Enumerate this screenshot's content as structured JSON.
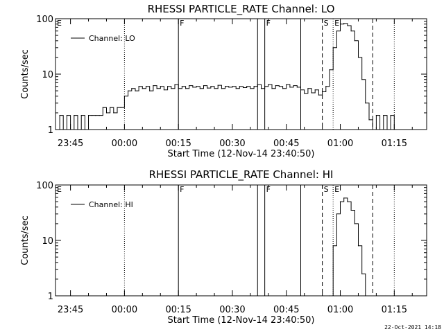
{
  "footer": {
    "date_stamp": "22-Oct-2021 14:18"
  },
  "colors": {
    "background": "#ffffff",
    "foreground": "#000000"
  },
  "chart_data": [
    {
      "type": "line",
      "title": "RHESSI PARTICLE_RATE Channel: LO",
      "xlabel": "Start Time (12-Nov-14 23:40:50)",
      "ylabel": "Counts/sec",
      "y_scale": "log",
      "ylim": [
        1,
        100
      ],
      "y_ticks": [
        {
          "value": 1,
          "label": "1"
        },
        {
          "value": 10,
          "label": "10"
        },
        {
          "value": 100,
          "label": "100"
        }
      ],
      "xlim": [
        "23:40:50",
        "01:24:00"
      ],
      "x_ticks": [
        {
          "value": "23:45",
          "label": "23:45"
        },
        {
          "value": "00:00",
          "label": "00:00"
        },
        {
          "value": "00:15",
          "label": "00:15"
        },
        {
          "value": "00:30",
          "label": "00:30"
        },
        {
          "value": "00:45",
          "label": "00:45"
        },
        {
          "value": "01:00",
          "label": "01:00"
        },
        {
          "value": "01:15",
          "label": "01:15"
        }
      ],
      "legend": {
        "placement": "top-left",
        "entry": "Channel: LO"
      },
      "markers": [
        {
          "time": "00:00",
          "style": "dotted",
          "label": ""
        },
        {
          "time": "00:15",
          "style": "solid",
          "label": "F"
        },
        {
          "time": "00:37",
          "style": "solid",
          "label": ""
        },
        {
          "time": "00:39",
          "style": "solid",
          "label": "F"
        },
        {
          "time": "00:49",
          "style": "solid",
          "label": ""
        },
        {
          "time": "00:55",
          "style": "dashed",
          "label": "S"
        },
        {
          "time": "00:58",
          "style": "dotted",
          "label": "E"
        },
        {
          "time": "01:09",
          "style": "dashed",
          "label": ""
        },
        {
          "time": "01:15",
          "style": "dotted",
          "label": ""
        }
      ],
      "corner_label": "E",
      "series": [
        {
          "name": "Channel: LO",
          "points": [
            [
              "23:41",
              1.0
            ],
            [
              "23:42",
              1.8
            ],
            [
              "23:43",
              1.0
            ],
            [
              "23:44",
              1.8
            ],
            [
              "23:45",
              1.0
            ],
            [
              "23:46",
              1.8
            ],
            [
              "23:47",
              1.0
            ],
            [
              "23:48",
              1.8
            ],
            [
              "23:49",
              1.0
            ],
            [
              "23:50",
              1.8
            ],
            [
              "23:51",
              1.8
            ],
            [
              "23:52",
              1.8
            ],
            [
              "23:53",
              1.8
            ],
            [
              "23:54",
              2.5
            ],
            [
              "23:55",
              2.0
            ],
            [
              "23:56",
              2.5
            ],
            [
              "23:57",
              2.0
            ],
            [
              "23:58",
              2.5
            ],
            [
              "23:59",
              2.5
            ],
            [
              "00:00",
              4.0
            ],
            [
              "00:01",
              5.0
            ],
            [
              "00:02",
              5.5
            ],
            [
              "00:03",
              5.0
            ],
            [
              "00:04",
              6.0
            ],
            [
              "00:05",
              5.5
            ],
            [
              "00:06",
              6.0
            ],
            [
              "00:07",
              5.0
            ],
            [
              "00:08",
              6.2
            ],
            [
              "00:09",
              5.5
            ],
            [
              "00:10",
              6.0
            ],
            [
              "00:11",
              5.2
            ],
            [
              "00:12",
              6.0
            ],
            [
              "00:13",
              5.5
            ],
            [
              "00:14",
              6.5
            ],
            [
              "00:15",
              5.5
            ],
            [
              "00:16",
              6.0
            ],
            [
              "00:17",
              5.5
            ],
            [
              "00:18",
              6.2
            ],
            [
              "00:19",
              5.8
            ],
            [
              "00:20",
              6.0
            ],
            [
              "00:21",
              5.5
            ],
            [
              "00:22",
              6.2
            ],
            [
              "00:23",
              5.6
            ],
            [
              "00:24",
              6.0
            ],
            [
              "00:25",
              5.5
            ],
            [
              "00:26",
              6.3
            ],
            [
              "00:27",
              5.5
            ],
            [
              "00:28",
              6.0
            ],
            [
              "00:29",
              5.8
            ],
            [
              "00:30",
              6.0
            ],
            [
              "00:31",
              5.5
            ],
            [
              "00:32",
              6.0
            ],
            [
              "00:33",
              5.7
            ],
            [
              "00:34",
              6.0
            ],
            [
              "00:35",
              5.5
            ],
            [
              "00:36",
              6.0
            ],
            [
              "00:37",
              6.5
            ],
            [
              "00:38",
              5.5
            ],
            [
              "00:39",
              6.0
            ],
            [
              "00:40",
              6.5
            ],
            [
              "00:41",
              5.5
            ],
            [
              "00:42",
              6.2
            ],
            [
              "00:43",
              6.0
            ],
            [
              "00:44",
              5.5
            ],
            [
              "00:45",
              6.5
            ],
            [
              "00:46",
              5.8
            ],
            [
              "00:47",
              6.2
            ],
            [
              "00:48",
              5.8
            ],
            [
              "00:49",
              5.2
            ],
            [
              "00:50",
              4.5
            ],
            [
              "00:51",
              5.5
            ],
            [
              "00:52",
              4.6
            ],
            [
              "00:53",
              5.2
            ],
            [
              "00:54",
              4.2
            ],
            [
              "00:55",
              4.8
            ],
            [
              "00:56",
              6.0
            ],
            [
              "00:57",
              12.0
            ],
            [
              "00:58",
              30.0
            ],
            [
              "00:59",
              60.0
            ],
            [
              "01:00",
              80.0
            ],
            [
              "01:01",
              82.0
            ],
            [
              "01:02",
              75.0
            ],
            [
              "01:03",
              60.0
            ],
            [
              "01:04",
              40.0
            ],
            [
              "01:05",
              20.0
            ],
            [
              "01:06",
              8.0
            ],
            [
              "01:07",
              3.0
            ],
            [
              "01:08",
              1.5
            ],
            [
              "01:09",
              1.0
            ],
            [
              "01:10",
              1.8
            ],
            [
              "01:11",
              1.0
            ],
            [
              "01:12",
              1.8
            ],
            [
              "01:13",
              1.0
            ],
            [
              "01:14",
              1.8
            ],
            [
              "01:15",
              1.0
            ]
          ]
        }
      ]
    },
    {
      "type": "line",
      "title": "RHESSI PARTICLE_RATE Channel: HI",
      "xlabel": "Start Time (12-Nov-14 23:40:50)",
      "ylabel": "Counts/sec",
      "y_scale": "log",
      "ylim": [
        1,
        100
      ],
      "y_ticks": [
        {
          "value": 1,
          "label": "1"
        },
        {
          "value": 10,
          "label": "10"
        },
        {
          "value": 100,
          "label": "100"
        }
      ],
      "xlim": [
        "23:40:50",
        "01:24:00"
      ],
      "x_ticks": [
        {
          "value": "23:45",
          "label": "23:45"
        },
        {
          "value": "00:00",
          "label": "00:00"
        },
        {
          "value": "00:15",
          "label": "00:15"
        },
        {
          "value": "00:30",
          "label": "00:30"
        },
        {
          "value": "00:45",
          "label": "00:45"
        },
        {
          "value": "01:00",
          "label": "01:00"
        },
        {
          "value": "01:15",
          "label": "01:15"
        }
      ],
      "legend": {
        "placement": "top-left",
        "entry": "Channel: HI"
      },
      "markers": [
        {
          "time": "00:00",
          "style": "dotted",
          "label": ""
        },
        {
          "time": "00:15",
          "style": "solid",
          "label": "F"
        },
        {
          "time": "00:37",
          "style": "solid",
          "label": ""
        },
        {
          "time": "00:39",
          "style": "solid",
          "label": "F"
        },
        {
          "time": "00:49",
          "style": "solid",
          "label": ""
        },
        {
          "time": "00:55",
          "style": "dashed",
          "label": "S"
        },
        {
          "time": "00:58",
          "style": "dotted",
          "label": "E"
        },
        {
          "time": "01:09",
          "style": "dashed",
          "label": ""
        },
        {
          "time": "01:15",
          "style": "dotted",
          "label": ""
        }
      ],
      "corner_label": "E",
      "series": [
        {
          "name": "Channel: HI",
          "points": [
            [
              "00:57",
              1.0
            ],
            [
              "00:58",
              8.0
            ],
            [
              "00:59",
              30.0
            ],
            [
              "01:00",
              50.0
            ],
            [
              "01:01",
              58.0
            ],
            [
              "01:02",
              50.0
            ],
            [
              "01:03",
              35.0
            ],
            [
              "01:04",
              20.0
            ],
            [
              "01:05",
              8.0
            ],
            [
              "01:06",
              2.5
            ],
            [
              "01:07",
              1.0
            ]
          ]
        }
      ]
    }
  ]
}
